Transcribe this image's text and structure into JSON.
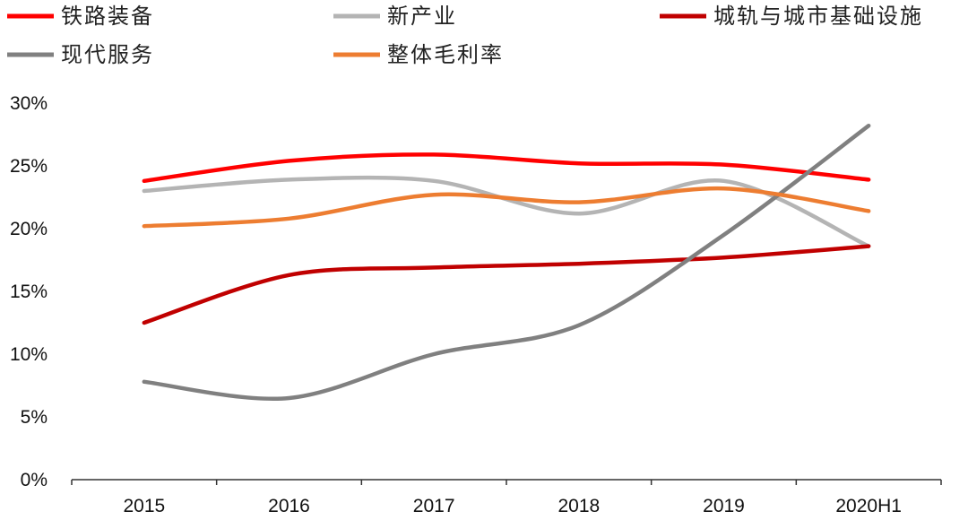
{
  "chart_data": {
    "type": "line",
    "title": "",
    "xlabel": "",
    "ylabel": "",
    "categories": [
      "2015",
      "2016",
      "2017",
      "2018",
      "2019",
      "2020H1"
    ],
    "ylim": [
      0,
      30
    ],
    "yticks": [
      0,
      5,
      10,
      15,
      20,
      25,
      30
    ],
    "ytick_labels": [
      "0%",
      "5%",
      "10%",
      "15%",
      "20%",
      "25%",
      "30%"
    ],
    "grid": false,
    "legend_position": "top",
    "series": [
      {
        "name": "铁路装备",
        "color": "#ff0000",
        "values": [
          23.8,
          25.4,
          25.9,
          25.2,
          25.1,
          23.9
        ]
      },
      {
        "name": "新产业",
        "color": "#b4b4b4",
        "values": [
          23.0,
          23.9,
          23.8,
          21.2,
          23.8,
          18.6
        ]
      },
      {
        "name": "城轨与城市基础设施",
        "color": "#c00000",
        "values": [
          12.5,
          16.3,
          16.9,
          17.2,
          17.7,
          18.6
        ]
      },
      {
        "name": "现代服务",
        "color": "#808080",
        "values": [
          7.8,
          6.5,
          10.0,
          12.3,
          19.5,
          28.2
        ]
      },
      {
        "name": "整体毛利率",
        "color": "#ed7d31",
        "values": [
          20.2,
          20.8,
          22.7,
          22.1,
          23.2,
          21.4
        ]
      }
    ]
  }
}
